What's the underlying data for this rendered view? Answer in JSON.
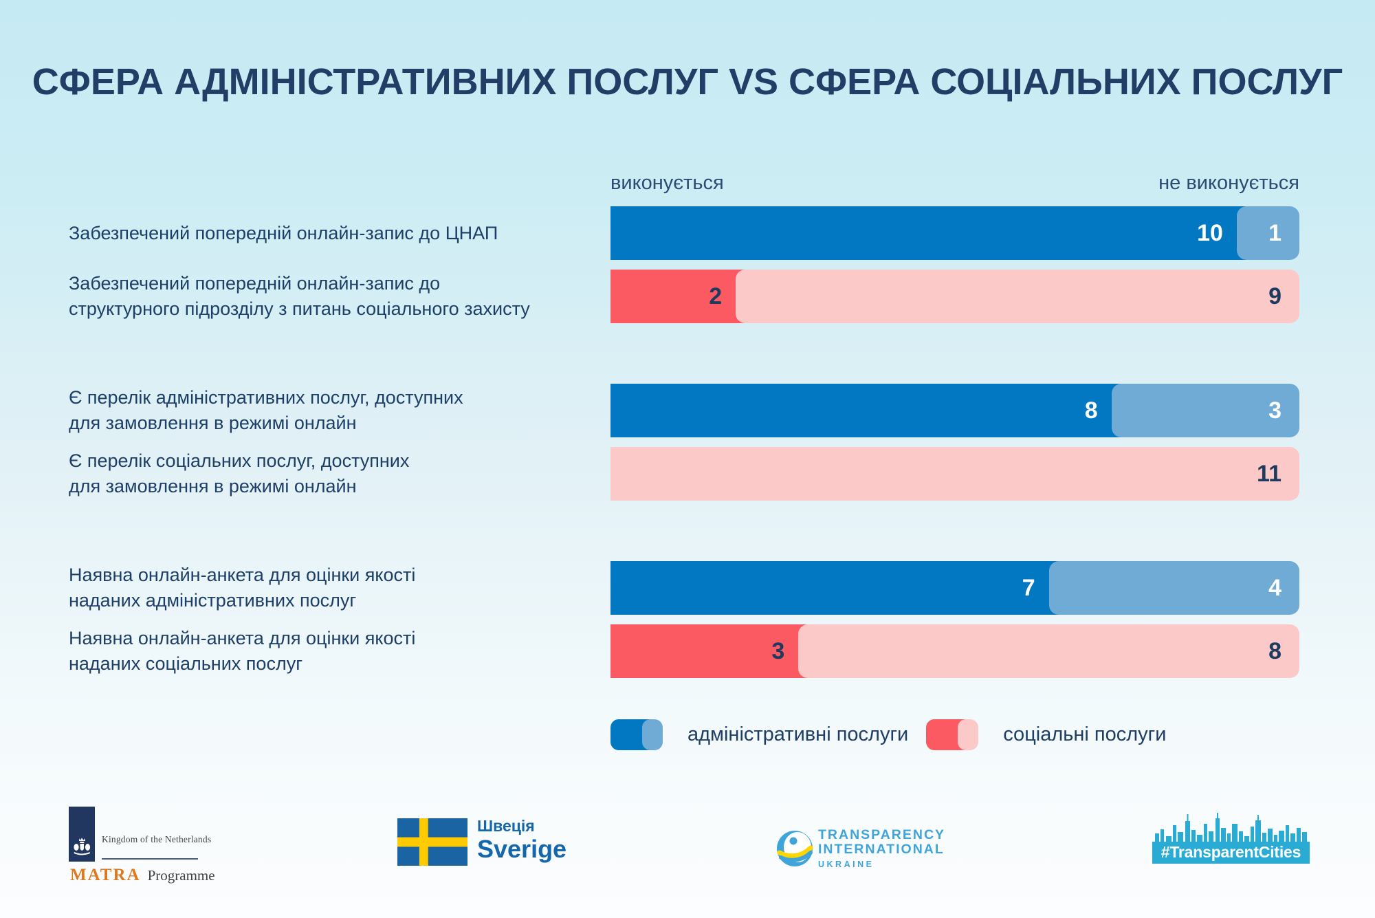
{
  "title": "СФЕРА АДМІНІСТРАТИВНИХ ПОСЛУГ VS СФЕРА СОЦІАЛЬНИХ ПОСЛУГ",
  "headers": {
    "left": "виконується",
    "right": "не виконується"
  },
  "chart_data": {
    "type": "bar",
    "orientation": "horizontal",
    "stacked": true,
    "x_max": 11,
    "series_names": [
      "виконується",
      "не виконується"
    ],
    "rows": [
      {
        "label": "Забезпечений попередній онлайн-запис до ЦНАП",
        "category": "адміністративні послуги",
        "kind": "admin",
        "done": 10,
        "not_done": 1
      },
      {
        "label": "Забезпечений попередній онлайн-запис до\nструктурного підрозділу з питань соціального захисту",
        "category": "соціальні послуги",
        "kind": "social",
        "done": 2,
        "not_done": 9
      },
      {
        "label": "Є перелік адміністративних послуг, доступних\nдля замовлення в режимі онлайн",
        "category": "адміністративні послуги",
        "kind": "admin",
        "done": 8,
        "not_done": 3
      },
      {
        "label": "Є перелік соціальних послуг, доступних\nдля замовлення в режимі онлайн",
        "category": "соціальні послуги",
        "kind": "social",
        "done": 0,
        "not_done": 11
      },
      {
        "label": "Наявна онлайн-анкета для оцінки якості\nнаданих адміністративних послуг",
        "category": "адміністративні послуги",
        "kind": "admin",
        "done": 7,
        "not_done": 4
      },
      {
        "label": "Наявна онлайн-анкета для оцінки якості\nнаданих соціальних послуг",
        "category": "соціальні послуги",
        "kind": "social",
        "done": 3,
        "not_done": 8
      }
    ],
    "legend": [
      {
        "label": "адміністративні послуги",
        "color_done": "#0277c2",
        "color_not_done": "#6fabd5"
      },
      {
        "label": "соціальні послуги",
        "color_done": "#fb5a62",
        "color_not_done": "#fcc9c9"
      }
    ],
    "grid": false,
    "legend_position": "bottom"
  },
  "colors": {
    "background_top": "#c6eaf3",
    "background_bottom": "#fcfdfe",
    "navy_text": "#1d3e66",
    "admin_done": "#0277c2",
    "admin_not_done": "#6fabd5",
    "social_done": "#fb5a62",
    "social_not_done": "#fcc9c9",
    "cyan_logo": "#29abd4"
  },
  "footer": {
    "netherlands": {
      "name": "Kingdom of the Netherlands",
      "matra": "MATRA",
      "programme": "Programme"
    },
    "sweden": {
      "uk": "Швеція",
      "sv": "Sverige"
    },
    "transparency": {
      "line1": "TRANSPARENCY",
      "line2": "INTERNATIONAL",
      "line3": "UKRAINE"
    },
    "transparent_cities": {
      "hashtag": "#TransparentCities"
    }
  }
}
